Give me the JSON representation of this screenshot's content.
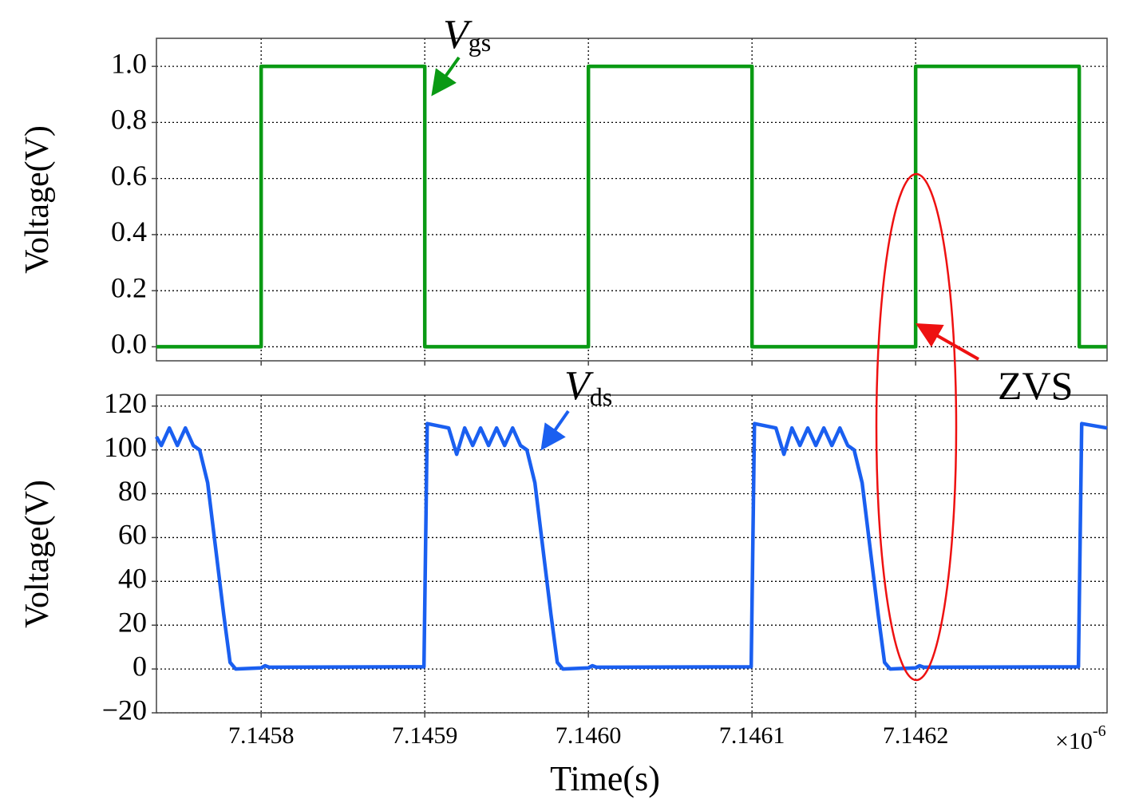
{
  "chart_data": [
    {
      "type": "line",
      "y_label": "Voltage(V)",
      "x": [
        7.145736,
        7.1458,
        7.1458,
        7.1459,
        7.1459,
        7.146,
        7.146,
        7.1461,
        7.1461,
        7.1462,
        7.1462,
        7.1463,
        7.1463,
        7.146317
      ],
      "values": [
        0,
        0,
        1,
        1,
        0,
        0,
        1,
        1,
        0,
        0,
        1,
        1,
        0,
        0
      ],
      "color": "#0a9a14",
      "xlim": [
        7.145736,
        7.146317
      ],
      "xticks": [
        7.1458,
        7.1459,
        7.146,
        7.1461,
        7.1462
      ],
      "ylim": [
        -0.05,
        1.1
      ],
      "yticks": [
        {
          "value": 0,
          "label": "0.0"
        },
        0.2,
        0.4,
        0.6,
        0.8,
        {
          "value": 1,
          "label": "1.0"
        }
      ],
      "grid": true,
      "annotations": [
        {
          "text": "V",
          "subscript": "gs",
          "color": "#0a9a14"
        },
        {
          "text": "ZVS",
          "color": "#ee1111"
        }
      ]
    },
    {
      "type": "line",
      "y_label": "Voltage(V)",
      "x_label": "Time(s)",
      "offset_text": "×10",
      "offset_exponent": "-6",
      "x": [
        7.145736,
        7.145739,
        7.1457439,
        7.1457488,
        7.1457537,
        7.1457585,
        7.1457624,
        7.1457673,
        7.1457722,
        7.1457771,
        7.145781,
        7.1457844,
        7.1458,
        7.1458024,
        7.1458049,
        7.1458995,
        7.1459015,
        7.1459146,
        7.1459195,
        7.1459244,
        7.1459293,
        7.1459341,
        7.145939,
        7.1459439,
        7.1459488,
        7.1459537,
        7.1459585,
        7.1459624,
        7.1459673,
        7.1459722,
        7.1459771,
        7.145981,
        7.1459844,
        7.146,
        7.1460024,
        7.1460049,
        7.1460995,
        7.1461015,
        7.1461146,
        7.1461195,
        7.1461244,
        7.1461293,
        7.1461341,
        7.146139,
        7.1461439,
        7.1461488,
        7.1461537,
        7.1461585,
        7.1461624,
        7.1461673,
        7.1461722,
        7.1461771,
        7.146181,
        7.1461844,
        7.1462,
        7.1462024,
        7.1462049,
        7.1462995,
        7.1463015,
        7.146317
      ],
      "values": [
        106,
        102,
        110,
        102,
        110,
        102,
        100,
        85,
        55,
        25,
        3,
        0,
        0.5,
        1.5,
        0.8,
        1,
        112,
        110,
        98,
        110,
        102,
        110,
        102,
        110,
        102,
        110,
        102,
        100,
        85,
        55,
        25,
        3,
        0,
        0.5,
        1.5,
        0.8,
        1,
        112,
        110,
        98,
        110,
        102,
        110,
        102,
        110,
        102,
        110,
        102,
        100,
        85,
        55,
        25,
        3,
        0,
        0.5,
        1.5,
        0.8,
        1,
        112,
        110
      ],
      "color": "#1a5ff0",
      "xlim": [
        7.145736,
        7.146317
      ],
      "xticks": [
        7.1458,
        7.1459,
        {
          "value": 7.146,
          "label": "7.1460"
        },
        7.1461,
        7.1462
      ],
      "ylim": [
        -20,
        125
      ],
      "yticks": [
        {
          "value": -20,
          "label": "−20"
        },
        0,
        20,
        40,
        60,
        80,
        100,
        120
      ],
      "grid": true,
      "annotations": [
        {
          "text": "V",
          "subscript": "ds",
          "color": "#1a5ff0"
        }
      ]
    }
  ]
}
